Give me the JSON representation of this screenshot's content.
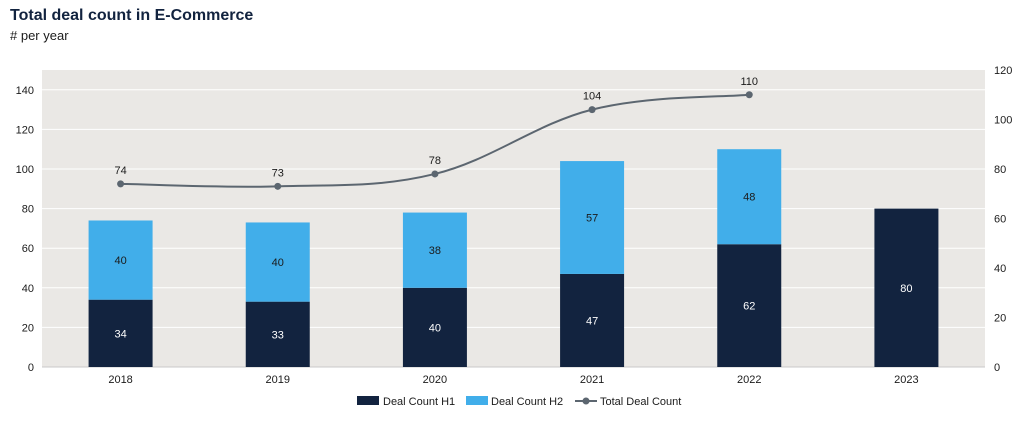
{
  "header": {
    "title": "Total deal count in E-Commerce",
    "subtitle": "# per year"
  },
  "chart_data": {
    "type": "bar",
    "stacked": true,
    "categories": [
      "2018",
      "2019",
      "2020",
      "2021",
      "2022",
      "2023"
    ],
    "series": [
      {
        "name": "Deal Count H1",
        "values": [
          34,
          33,
          40,
          47,
          62,
          80
        ],
        "color": "#12233f",
        "axis": "left"
      },
      {
        "name": "Deal Count H2",
        "values": [
          40,
          40,
          38,
          57,
          48,
          null
        ],
        "color": "#41aeea",
        "axis": "left"
      }
    ],
    "line_series": {
      "name": "Total Deal Count",
      "values": [
        74,
        73,
        78,
        104,
        110,
        null
      ],
      "color": "#5c6670",
      "axis": "right"
    },
    "ylim_left": [
      0,
      150
    ],
    "yticks_left": [
      0,
      20,
      40,
      60,
      80,
      100,
      120,
      140
    ],
    "ylim_right": [
      0,
      120
    ],
    "yticks_right": [
      0,
      20,
      40,
      60,
      80,
      100,
      120
    ],
    "plot_background": "#eae8e5",
    "grid": true,
    "legend_position": "bottom-center"
  }
}
